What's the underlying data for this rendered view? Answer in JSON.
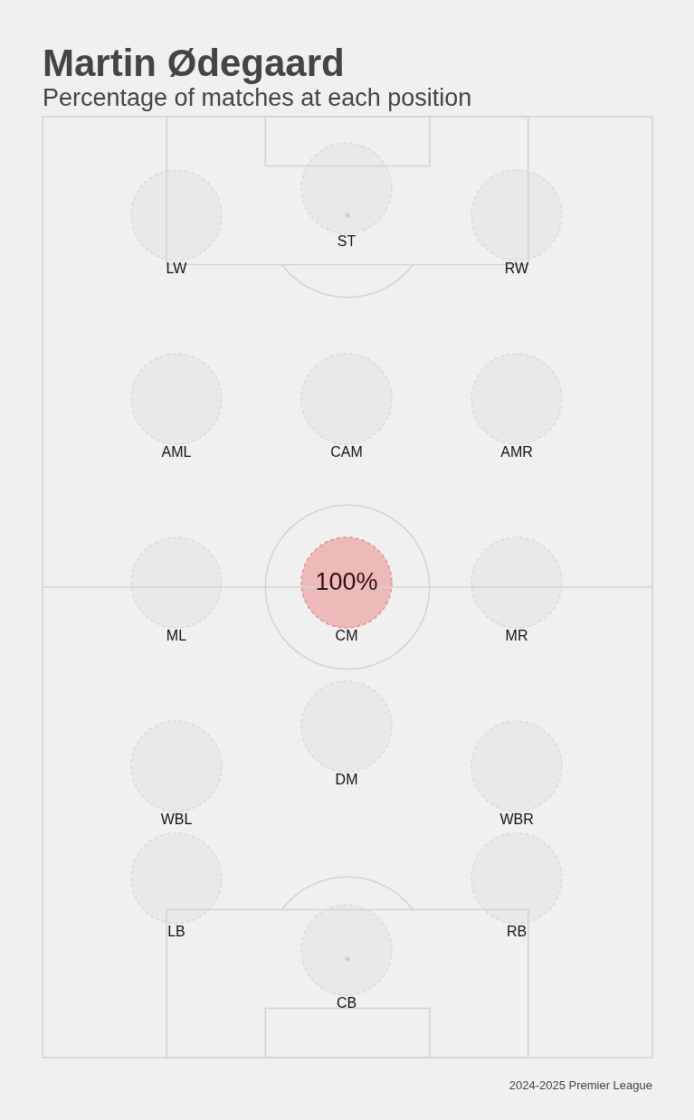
{
  "chart_data": {
    "type": "other",
    "title": "Martin Ødegaard",
    "subtitle": "Percentage of matches at each position",
    "categories": [
      "LW",
      "ST",
      "RW",
      "AML",
      "CAM",
      "AMR",
      "ML",
      "CM",
      "MR",
      "DM",
      "WBL",
      "WBR",
      "LB",
      "RB",
      "CB"
    ],
    "values": [
      null,
      null,
      null,
      null,
      null,
      null,
      null,
      100,
      null,
      null,
      null,
      null,
      null,
      null,
      null
    ],
    "value_labels": [
      null,
      null,
      null,
      null,
      null,
      null,
      null,
      "100%",
      null,
      null,
      null,
      null,
      null,
      null,
      null
    ],
    "colors": [
      "#e9e9e9",
      "#e9e9e9",
      "#e9e9e9",
      "#e9e9e9",
      "#e9e9e9",
      "#e9e9e9",
      "#e9e9e9",
      "#edb9b9",
      "#e9e9e9",
      "#e9e9e9",
      "#e9e9e9",
      "#e9e9e9",
      "#e9e9e9",
      "#e9e9e9",
      "#e9e9e9"
    ],
    "annotations": [
      "2024-2025 Premier League"
    ]
  }
}
